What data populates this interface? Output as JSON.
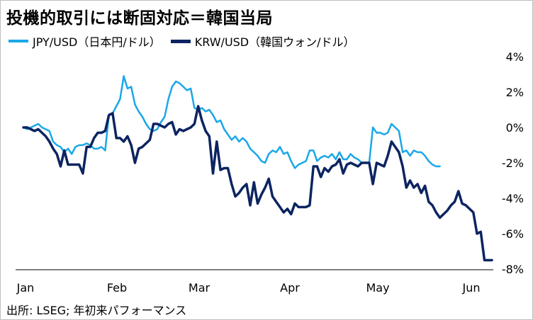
{
  "title": "投機的取引には断固対応＝韓国当局",
  "source": "出所: LSEG; 年初来パフォーマンス",
  "colors": {
    "jpy": "#1aa7e8",
    "krw": "#0c2461",
    "axis": "#000000"
  },
  "chart_data": {
    "type": "line",
    "title": "投機的取引には断固対応＝韓国当局",
    "xlabel": "",
    "ylabel": "",
    "y_unit": "%",
    "ylim": [
      -8,
      4
    ],
    "y_ticks": [
      4,
      2,
      0,
      -2,
      -4,
      -6,
      -8
    ],
    "y_tick_labels": [
      "4%",
      "2%",
      "0%",
      "-2%",
      "-4%",
      "-6%",
      "-8%"
    ],
    "x_ticks": [
      "Jan",
      "Feb",
      "Mar",
      "Apr",
      "May",
      "Jun"
    ],
    "y_axis_position": "right",
    "grid": false,
    "legend_position": "top-left",
    "x_index_range": [
      0,
      112
    ],
    "series": [
      {
        "name": "JPY/USD（日本円/ドル）",
        "color": "#1aa7e8",
        "points": [
          [
            0,
            0.0
          ],
          [
            1,
            -0.1
          ],
          [
            2,
            0.0
          ],
          [
            3,
            0.1
          ],
          [
            4,
            0.2
          ],
          [
            5,
            0.0
          ],
          [
            6,
            -0.1
          ],
          [
            7,
            -0.2
          ],
          [
            8,
            -0.8
          ],
          [
            9,
            -1.0
          ],
          [
            10,
            -1.1
          ],
          [
            11,
            -1.4
          ],
          [
            12,
            -1.2
          ],
          [
            13,
            -1.5
          ],
          [
            14,
            -1.1
          ],
          [
            15,
            -1.0
          ],
          [
            16,
            -1.0
          ],
          [
            17,
            -0.9
          ],
          [
            18,
            -1.0
          ],
          [
            19,
            -1.2
          ],
          [
            20,
            -1.2
          ],
          [
            21,
            -1.1
          ],
          [
            22,
            -1.3
          ],
          [
            23,
            0.7
          ],
          [
            24,
            0.8
          ],
          [
            25,
            1.2
          ],
          [
            26,
            1.6
          ],
          [
            27,
            2.9
          ],
          [
            28,
            2.2
          ],
          [
            29,
            2.3
          ],
          [
            30,
            1.3
          ],
          [
            31,
            0.9
          ],
          [
            32,
            0.6
          ],
          [
            33,
            0.2
          ],
          [
            34,
            -0.1
          ],
          [
            35,
            -0.2
          ],
          [
            36,
            -0.1
          ],
          [
            37,
            0.3
          ],
          [
            38,
            0.6
          ],
          [
            39,
            1.6
          ],
          [
            40,
            2.3
          ],
          [
            41,
            2.6
          ],
          [
            42,
            2.5
          ],
          [
            43,
            2.3
          ],
          [
            44,
            2.1
          ],
          [
            45,
            2.2
          ],
          [
            46,
            1.1
          ],
          [
            47,
            1.0
          ],
          [
            48,
            1.1
          ],
          [
            49,
            0.9
          ],
          [
            50,
            1.0
          ],
          [
            51,
            0.7
          ],
          [
            52,
            0.3
          ],
          [
            53,
            0.4
          ],
          [
            54,
            -0.1
          ],
          [
            55,
            -0.4
          ],
          [
            56,
            -0.7
          ],
          [
            57,
            -0.5
          ],
          [
            58,
            -0.8
          ],
          [
            59,
            -0.6
          ],
          [
            60,
            -0.8
          ],
          [
            61,
            -1.2
          ],
          [
            62,
            -1.4
          ],
          [
            63,
            -1.6
          ],
          [
            64,
            -1.9
          ],
          [
            65,
            -2.0
          ],
          [
            66,
            -1.5
          ],
          [
            67,
            -1.3
          ],
          [
            68,
            -1.4
          ],
          [
            69,
            -1.1
          ],
          [
            70,
            -1.5
          ],
          [
            71,
            -1.4
          ],
          [
            72,
            -1.9
          ],
          [
            73,
            -2.3
          ],
          [
            74,
            -2.1
          ],
          [
            75,
            -2.0
          ],
          [
            76,
            -1.9
          ],
          [
            77,
            -1.3
          ],
          [
            78,
            -1.3
          ],
          [
            79,
            -1.9
          ],
          [
            80,
            -1.7
          ],
          [
            81,
            -1.6
          ],
          [
            82,
            -1.7
          ],
          [
            83,
            -1.5
          ],
          [
            84,
            -1.8
          ],
          [
            85,
            -1.4
          ],
          [
            86,
            -1.8
          ],
          [
            87,
            -1.8
          ],
          [
            88,
            -1.5
          ],
          [
            89,
            -1.7
          ],
          [
            90,
            -1.8
          ],
          [
            91,
            -2.0
          ],
          [
            92,
            -2.0
          ],
          [
            93,
            -2.0
          ],
          [
            94,
            0.0
          ],
          [
            95,
            -0.3
          ],
          [
            96,
            -0.3
          ],
          [
            97,
            -0.4
          ],
          [
            98,
            -0.3
          ],
          [
            99,
            0.2
          ],
          [
            100,
            0.0
          ],
          [
            101,
            -0.2
          ],
          [
            102,
            -1.4
          ],
          [
            103,
            -1.3
          ],
          [
            104,
            -1.6
          ],
          [
            105,
            -1.3
          ],
          [
            106,
            -1.4
          ],
          [
            107,
            -1.4
          ],
          [
            108,
            -1.6
          ],
          [
            109,
            -1.9
          ],
          [
            110,
            -2.1
          ],
          [
            111,
            -2.2
          ],
          [
            112,
            -2.2
          ]
        ]
      },
      {
        "name": "KRW/USD（韓国ウォン/ドル）",
        "color": "#0c2461",
        "points": [
          [
            0,
            0.0
          ],
          [
            1,
            0.0
          ],
          [
            2,
            -0.1
          ],
          [
            3,
            -0.2
          ],
          [
            4,
            -0.1
          ],
          [
            5,
            -0.3
          ],
          [
            6,
            -0.5
          ],
          [
            7,
            -0.8
          ],
          [
            8,
            -1.2
          ],
          [
            9,
            -1.5
          ],
          [
            10,
            -2.2
          ],
          [
            11,
            -1.3
          ],
          [
            12,
            -2.1
          ],
          [
            13,
            -2.1
          ],
          [
            14,
            -2.1
          ],
          [
            15,
            -2.1
          ],
          [
            16,
            -2.6
          ],
          [
            17,
            -1.1
          ],
          [
            18,
            -1.1
          ],
          [
            19,
            -0.6
          ],
          [
            20,
            -0.3
          ],
          [
            21,
            -0.3
          ],
          [
            22,
            -0.2
          ],
          [
            23,
            0.7
          ],
          [
            24,
            0.8
          ],
          [
            25,
            -0.6
          ],
          [
            26,
            -0.6
          ],
          [
            27,
            -0.8
          ],
          [
            28,
            -0.5
          ],
          [
            29,
            -1.0
          ],
          [
            30,
            -2.0
          ],
          [
            31,
            -1.2
          ],
          [
            32,
            -1.1
          ],
          [
            33,
            -0.9
          ],
          [
            34,
            -0.7
          ],
          [
            35,
            0.2
          ],
          [
            36,
            0.2
          ],
          [
            37,
            0.1
          ],
          [
            38,
            0.0
          ],
          [
            39,
            0.2
          ],
          [
            40,
            0.3
          ],
          [
            41,
            -0.4
          ],
          [
            42,
            -0.1
          ],
          [
            43,
            -0.2
          ],
          [
            44,
            -0.1
          ],
          [
            45,
            0.0
          ],
          [
            46,
            0.2
          ],
          [
            47,
            1.2
          ],
          [
            48,
            0.4
          ],
          [
            49,
            -0.2
          ],
          [
            50,
            -0.5
          ],
          [
            51,
            -2.6
          ],
          [
            52,
            -0.8
          ],
          [
            53,
            -2.4
          ],
          [
            54,
            -2.3
          ],
          [
            55,
            -2.3
          ],
          [
            56,
            -3.2
          ],
          [
            57,
            -3.9
          ],
          [
            58,
            -3.7
          ],
          [
            59,
            -3.4
          ],
          [
            60,
            -3.2
          ],
          [
            61,
            -4.4
          ],
          [
            62,
            -3.1
          ],
          [
            63,
            -4.3
          ],
          [
            64,
            -3.8
          ],
          [
            65,
            -3.4
          ],
          [
            66,
            -2.9
          ],
          [
            67,
            -3.9
          ],
          [
            68,
            -4.2
          ],
          [
            69,
            -4.5
          ],
          [
            70,
            -4.8
          ],
          [
            71,
            -4.6
          ],
          [
            72,
            -4.9
          ],
          [
            73,
            -4.3
          ],
          [
            74,
            -4.5
          ],
          [
            75,
            -4.5
          ],
          [
            76,
            -4.5
          ],
          [
            77,
            -4.4
          ],
          [
            78,
            -2.2
          ],
          [
            79,
            -2.2
          ],
          [
            80,
            -2.8
          ],
          [
            81,
            -2.3
          ],
          [
            82,
            -2.5
          ],
          [
            83,
            -2.2
          ],
          [
            84,
            -2.1
          ],
          [
            85,
            -1.8
          ],
          [
            86,
            -2.6
          ],
          [
            87,
            -2.1
          ],
          [
            88,
            -2.0
          ],
          [
            89,
            -2.1
          ],
          [
            90,
            -2.2
          ],
          [
            91,
            -2.0
          ],
          [
            92,
            -2.0
          ],
          [
            93,
            -2.0
          ],
          [
            94,
            -3.2
          ],
          [
            95,
            -2.0
          ],
          [
            96,
            -2.1
          ],
          [
            97,
            -2.2
          ],
          [
            98,
            -1.6
          ],
          [
            99,
            -0.8
          ],
          [
            100,
            -1.1
          ],
          [
            101,
            -1.4
          ],
          [
            102,
            -2.2
          ],
          [
            103,
            -3.4
          ],
          [
            104,
            -3.0
          ],
          [
            105,
            -3.4
          ],
          [
            106,
            -3.2
          ],
          [
            107,
            -3.7
          ],
          [
            108,
            -3.3
          ],
          [
            109,
            -4.2
          ],
          [
            110,
            -4.4
          ],
          [
            111,
            -4.8
          ],
          [
            112,
            -5.1
          ],
          [
            113,
            -4.9
          ],
          [
            114,
            -4.7
          ],
          [
            115,
            -4.4
          ],
          [
            116,
            -4.2
          ],
          [
            117,
            -3.6
          ],
          [
            118,
            -4.3
          ],
          [
            119,
            -4.4
          ],
          [
            120,
            -4.6
          ],
          [
            121,
            -4.8
          ],
          [
            122,
            -6.0
          ],
          [
            123,
            -5.9
          ],
          [
            124,
            -7.5
          ],
          [
            125,
            -7.5
          ],
          [
            126,
            -7.5
          ]
        ]
      }
    ]
  }
}
